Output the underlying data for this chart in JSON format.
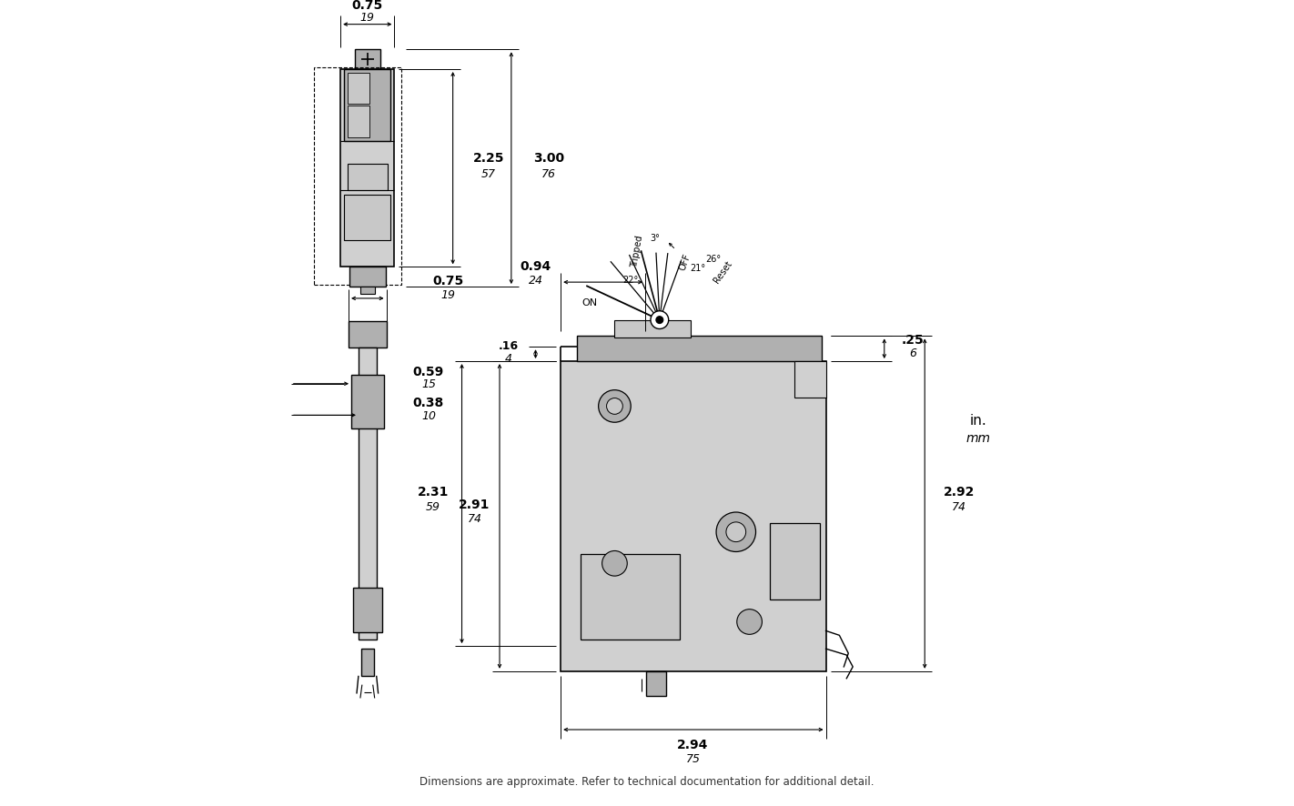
{
  "bg_color": "#ffffff",
  "lc": "#000000",
  "gray1": "#d0d0d0",
  "gray2": "#b0b0b0",
  "gray3": "#c8c8c8",
  "footer_text": "Dimensions are approximate. Refer to technical documentation for additional detail.",
  "dims": {
    "top_width_in": "0.75",
    "top_width_mm": "19",
    "top_h1_in": "2.25",
    "top_h1_mm": "57",
    "top_h2_in": "3.00",
    "top_h2_mm": "76",
    "side_width_in": "0.75",
    "side_width_mm": "19",
    "side_d1_in": "0.59",
    "side_d1_mm": "15",
    "side_d2_in": "0.38",
    "side_d2_mm": "10",
    "front_top_in": "0.94",
    "front_top_mm": "24",
    "front_offset_in": ".16",
    "front_offset_mm": "4",
    "front_h1_in": "2.91",
    "front_h1_mm": "74",
    "front_h2_in": "2.31",
    "front_h2_mm": "59",
    "front_w_in": "2.94",
    "front_w_mm": "75",
    "right_d1_in": ".25",
    "right_d1_mm": "6",
    "right_d2_in": "2.92",
    "right_d2_mm": "74",
    "angle_3": "3°",
    "angle_22": "22°",
    "angle_21": "21°",
    "angle_26": "26°",
    "label_on": "ON",
    "label_off": "OFF",
    "label_tripped": "Tripped",
    "label_reset": "Reset",
    "label_units1": "in.",
    "label_units2": "mm"
  }
}
